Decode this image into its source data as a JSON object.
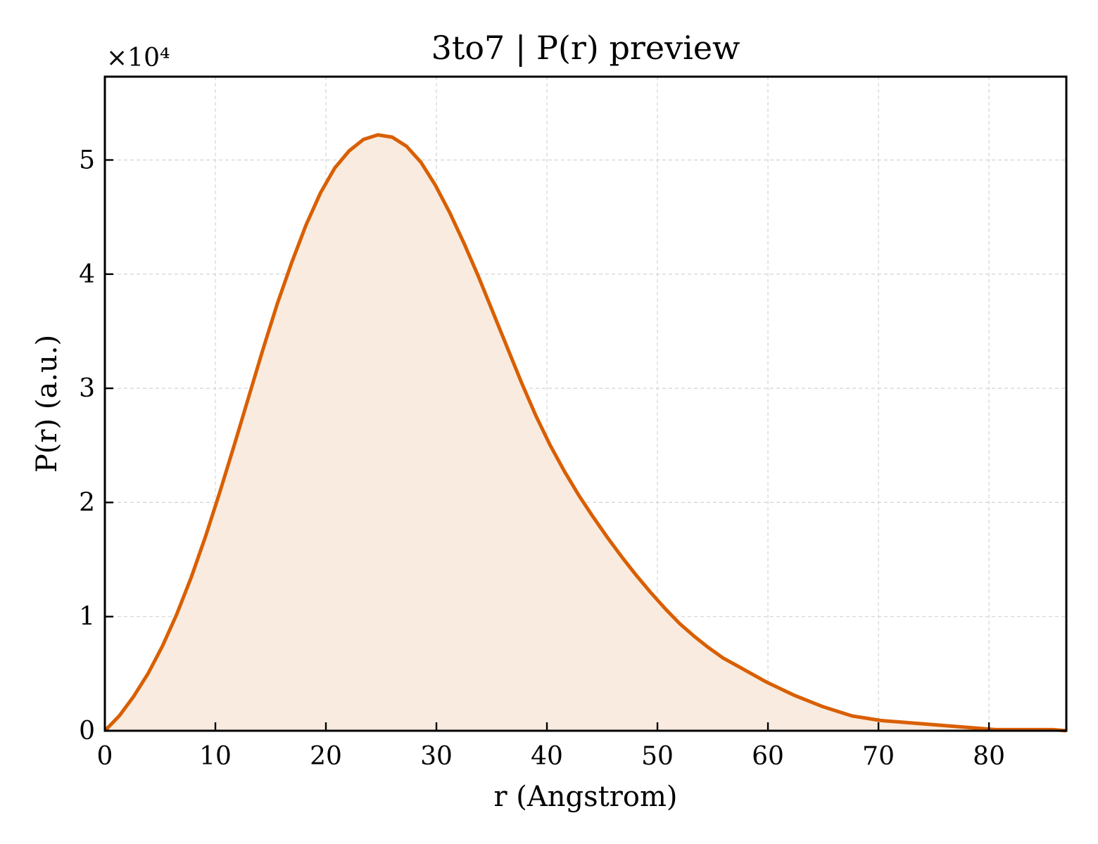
{
  "chart_data": {
    "type": "area",
    "title": "3to7 | P(r) preview",
    "xlabel": "r (Angstrom)",
    "ylabel": "P(r) (a.u.)",
    "y_multiplier_label": "×10⁴",
    "xlim": [
      0,
      87
    ],
    "ylim": [
      0,
      5.73
    ],
    "x_ticks": [
      0,
      10,
      20,
      30,
      40,
      50,
      60,
      70,
      80
    ],
    "x_tick_labels": [
      "0",
      "10",
      "20",
      "30",
      "40",
      "50",
      "60",
      "70",
      "80"
    ],
    "y_ticks": [
      0,
      1,
      2,
      3,
      4,
      5
    ],
    "y_tick_labels": [
      "0",
      "1",
      "2",
      "3",
      "4",
      "5"
    ],
    "grid": true,
    "series": [
      {
        "color": "#d95f02",
        "fill_color": "#f9ebe0",
        "x": [
          0,
          1.3,
          2.6,
          3.9,
          5.2,
          6.5,
          7.8,
          9.1,
          10.4,
          11.7,
          13.0,
          14.3,
          15.6,
          16.9,
          18.2,
          19.5,
          20.8,
          22.1,
          23.4,
          24.7,
          26.0,
          27.3,
          28.6,
          29.9,
          31.2,
          32.5,
          33.8,
          35.1,
          36.4,
          37.7,
          39.0,
          40.3,
          41.6,
          42.9,
          44.2,
          45.5,
          46.8,
          48.1,
          49.4,
          50.7,
          52.0,
          53.3,
          54.6,
          55.9,
          57.2,
          58.5,
          59.8,
          61.1,
          62.4,
          63.7,
          65.0,
          66.3,
          67.6,
          68.9,
          70.2,
          71.5,
          72.8,
          74.1,
          75.4,
          76.7,
          78.0,
          79.3,
          80.6,
          81.9,
          83.2,
          84.5,
          85.8,
          87.0
        ],
        "y": [
          0.0,
          0.13,
          0.3,
          0.5,
          0.74,
          1.02,
          1.34,
          1.7,
          2.09,
          2.5,
          2.92,
          3.34,
          3.74,
          4.1,
          4.43,
          4.71,
          4.93,
          5.08,
          5.18,
          5.22,
          5.2,
          5.12,
          4.98,
          4.78,
          4.54,
          4.27,
          3.98,
          3.67,
          3.36,
          3.05,
          2.76,
          2.5,
          2.27,
          2.06,
          1.87,
          1.69,
          1.52,
          1.36,
          1.21,
          1.07,
          0.94,
          0.83,
          0.73,
          0.64,
          0.57,
          0.5,
          0.43,
          0.37,
          0.31,
          0.26,
          0.21,
          0.17,
          0.13,
          0.11,
          0.09,
          0.08,
          0.07,
          0.06,
          0.05,
          0.04,
          0.03,
          0.02,
          0.01,
          0.01,
          0.01,
          0.01,
          0.01,
          0.0
        ]
      }
    ]
  }
}
